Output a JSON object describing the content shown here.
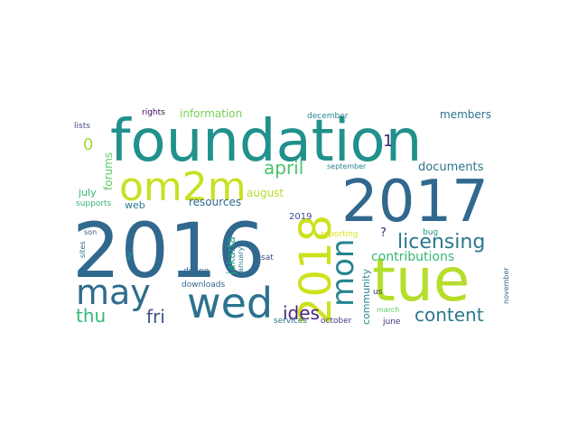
{
  "word_cloud": {
    "words": [
      {
        "text": "foundation",
        "color": "#21918c"
      },
      {
        "text": "2016",
        "color": "#31688e"
      },
      {
        "text": "2017",
        "color": "#31688e"
      },
      {
        "text": "tue",
        "color": "#b5de2b"
      },
      {
        "text": "om2m",
        "color": "#c8e020"
      },
      {
        "text": "wed",
        "color": "#2c728e"
      },
      {
        "text": "may",
        "color": "#2f6c8e"
      },
      {
        "text": "2018",
        "color": "#cde11d"
      },
      {
        "text": "mon",
        "color": "#25858e"
      },
      {
        "text": "licensing",
        "color": "#2a788e"
      },
      {
        "text": "april",
        "color": "#4ac16d"
      },
      {
        "text": "content",
        "color": "#2a788e"
      },
      {
        "text": "thu",
        "color": "#38b977"
      },
      {
        "text": "fri",
        "color": "#3b528b"
      },
      {
        "text": "ides",
        "color": "#482677"
      },
      {
        "text": "contributions",
        "color": "#35b779"
      },
      {
        "text": "documents",
        "color": "#2c728e"
      },
      {
        "text": "members",
        "color": "#2c728e"
      },
      {
        "text": "resources",
        "color": "#31688e"
      },
      {
        "text": "information",
        "color": "#7ad151"
      },
      {
        "text": "forums",
        "color": "#5ec962"
      },
      {
        "text": "community",
        "color": "#25858e"
      },
      {
        "text": "jakarta",
        "color": "#20a386"
      },
      {
        "text": "august",
        "color": "#b5de2b"
      },
      {
        "text": "web",
        "color": "#2a788e"
      },
      {
        "text": "0",
        "color": "#a0da39"
      },
      {
        "text": "1",
        "color": "#482677"
      },
      {
        "text": "july",
        "color": "#35b779"
      },
      {
        "text": "2019",
        "color": "#3e4989"
      },
      {
        "text": "rights",
        "color": "#440154"
      },
      {
        "text": "lists",
        "color": "#3e4989"
      },
      {
        "text": "december",
        "color": "#25858e"
      },
      {
        "text": "september",
        "color": "#26828e"
      },
      {
        "text": "supports",
        "color": "#35b779"
      },
      {
        "text": "bug",
        "color": "#21918c"
      },
      {
        "text": "?",
        "color": "#482677"
      },
      {
        "text": "reporting",
        "color": "#d8e219"
      },
      {
        "text": "son",
        "color": "#3b528b"
      },
      {
        "text": "january",
        "color": "#2a788e"
      },
      {
        "text": "sites",
        "color": "#2c728e"
      },
      {
        "text": "2",
        "color": "#20a386"
      },
      {
        "text": "sat",
        "color": "#3e4989"
      },
      {
        "text": "duong",
        "color": "#31688e"
      },
      {
        "text": "downloads",
        "color": "#31688e"
      },
      {
        "text": "services",
        "color": "#2c728e"
      },
      {
        "text": "october",
        "color": "#433e85"
      },
      {
        "text": "us",
        "color": "#443983"
      },
      {
        "text": "march",
        "color": "#5ec962"
      },
      {
        "text": "june",
        "color": "#46327e"
      },
      {
        "text": "november",
        "color": "#31688e"
      }
    ]
  }
}
